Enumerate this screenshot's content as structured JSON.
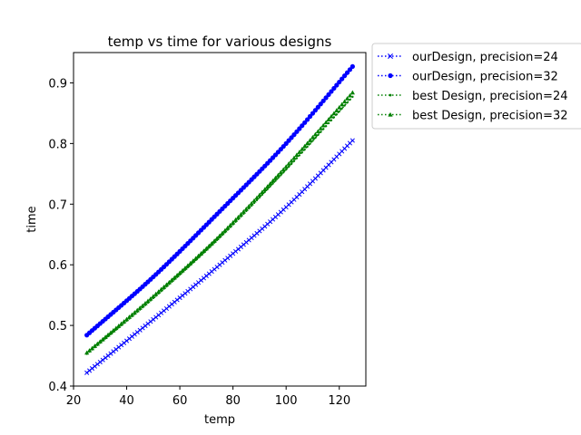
{
  "chart_data": {
    "type": "line",
    "title": "temp vs time for various designs",
    "xlabel": "temp",
    "ylabel": "time",
    "xlim": [
      20,
      130
    ],
    "ylim": [
      0.4,
      0.95
    ],
    "xticks": [
      20,
      40,
      60,
      80,
      100,
      120
    ],
    "yticks": [
      0.4,
      0.5,
      0.6,
      0.7,
      0.8,
      0.9
    ],
    "xtick_labels": [
      "20",
      "40",
      "60",
      "80",
      "100",
      "120"
    ],
    "ytick_labels": [
      "0.4",
      "0.5",
      "0.6",
      "0.7",
      "0.8",
      "0.9"
    ],
    "x_range": [
      25,
      125
    ],
    "x_step": 1,
    "grid": false,
    "legend_position": "outside-upper-right",
    "series": [
      {
        "name": "ourDesign, precision=24",
        "color": "#0000ff",
        "marker": "x",
        "curve_points": {
          "x": [
            25,
            50,
            75,
            100,
            125
          ],
          "y": [
            0.422,
            0.51,
            0.6,
            0.695,
            0.805
          ]
        }
      },
      {
        "name": "ourDesign, precision=32",
        "color": "#0000ff",
        "marker": "circle",
        "curve_points": {
          "x": [
            25,
            50,
            75,
            100,
            125
          ],
          "y": [
            0.484,
            0.58,
            0.688,
            0.8,
            0.927
          ]
        }
      },
      {
        "name": "best Design, precision=24",
        "color": "#008000",
        "marker": "dot",
        "curve_points": {
          "x": [
            25,
            50,
            75,
            100,
            125
          ],
          "y": [
            0.453,
            0.545,
            0.645,
            0.757,
            0.877
          ]
        }
      },
      {
        "name": "best Design, precision=32",
        "color": "#008000",
        "marker": "triangle",
        "curve_points": {
          "x": [
            25,
            50,
            75,
            100,
            125
          ],
          "y": [
            0.455,
            0.548,
            0.648,
            0.762,
            0.884
          ]
        }
      }
    ]
  }
}
